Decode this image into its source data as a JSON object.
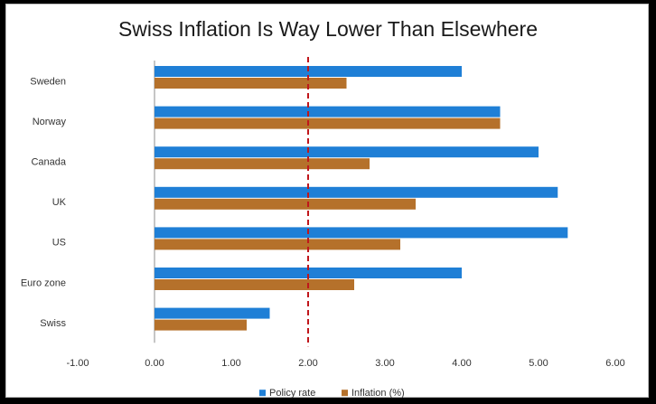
{
  "chart_data": {
    "type": "bar",
    "orientation": "horizontal",
    "title": "Swiss Inflation Is Way Lower Than Elsewhere",
    "xlabel": "",
    "ylabel": "",
    "categories": [
      "Sweden",
      "Norway",
      "Canada",
      "UK",
      "US",
      "Euro zone",
      "Swiss"
    ],
    "series": [
      {
        "name": "Policy rate",
        "color": "#1f7fd6",
        "values": [
          4.0,
          4.5,
          5.0,
          5.25,
          5.38,
          4.0,
          1.5
        ]
      },
      {
        "name": "Inflation (%)",
        "color": "#b5712b",
        "values": [
          2.5,
          4.5,
          2.8,
          3.4,
          3.2,
          2.6,
          1.2
        ]
      }
    ],
    "xlim": [
      -1.0,
      6.0
    ],
    "xticks": [
      "-1.00",
      "0.00",
      "1.00",
      "2.00",
      "3.00",
      "4.00",
      "5.00",
      "6.00"
    ],
    "xtick_values": [
      -1,
      0,
      1,
      2,
      3,
      4,
      5,
      6
    ],
    "reference_line": {
      "x": 2.0,
      "color": "#c0161b",
      "style": "dashed"
    },
    "grid": false,
    "legend": "bottom"
  }
}
